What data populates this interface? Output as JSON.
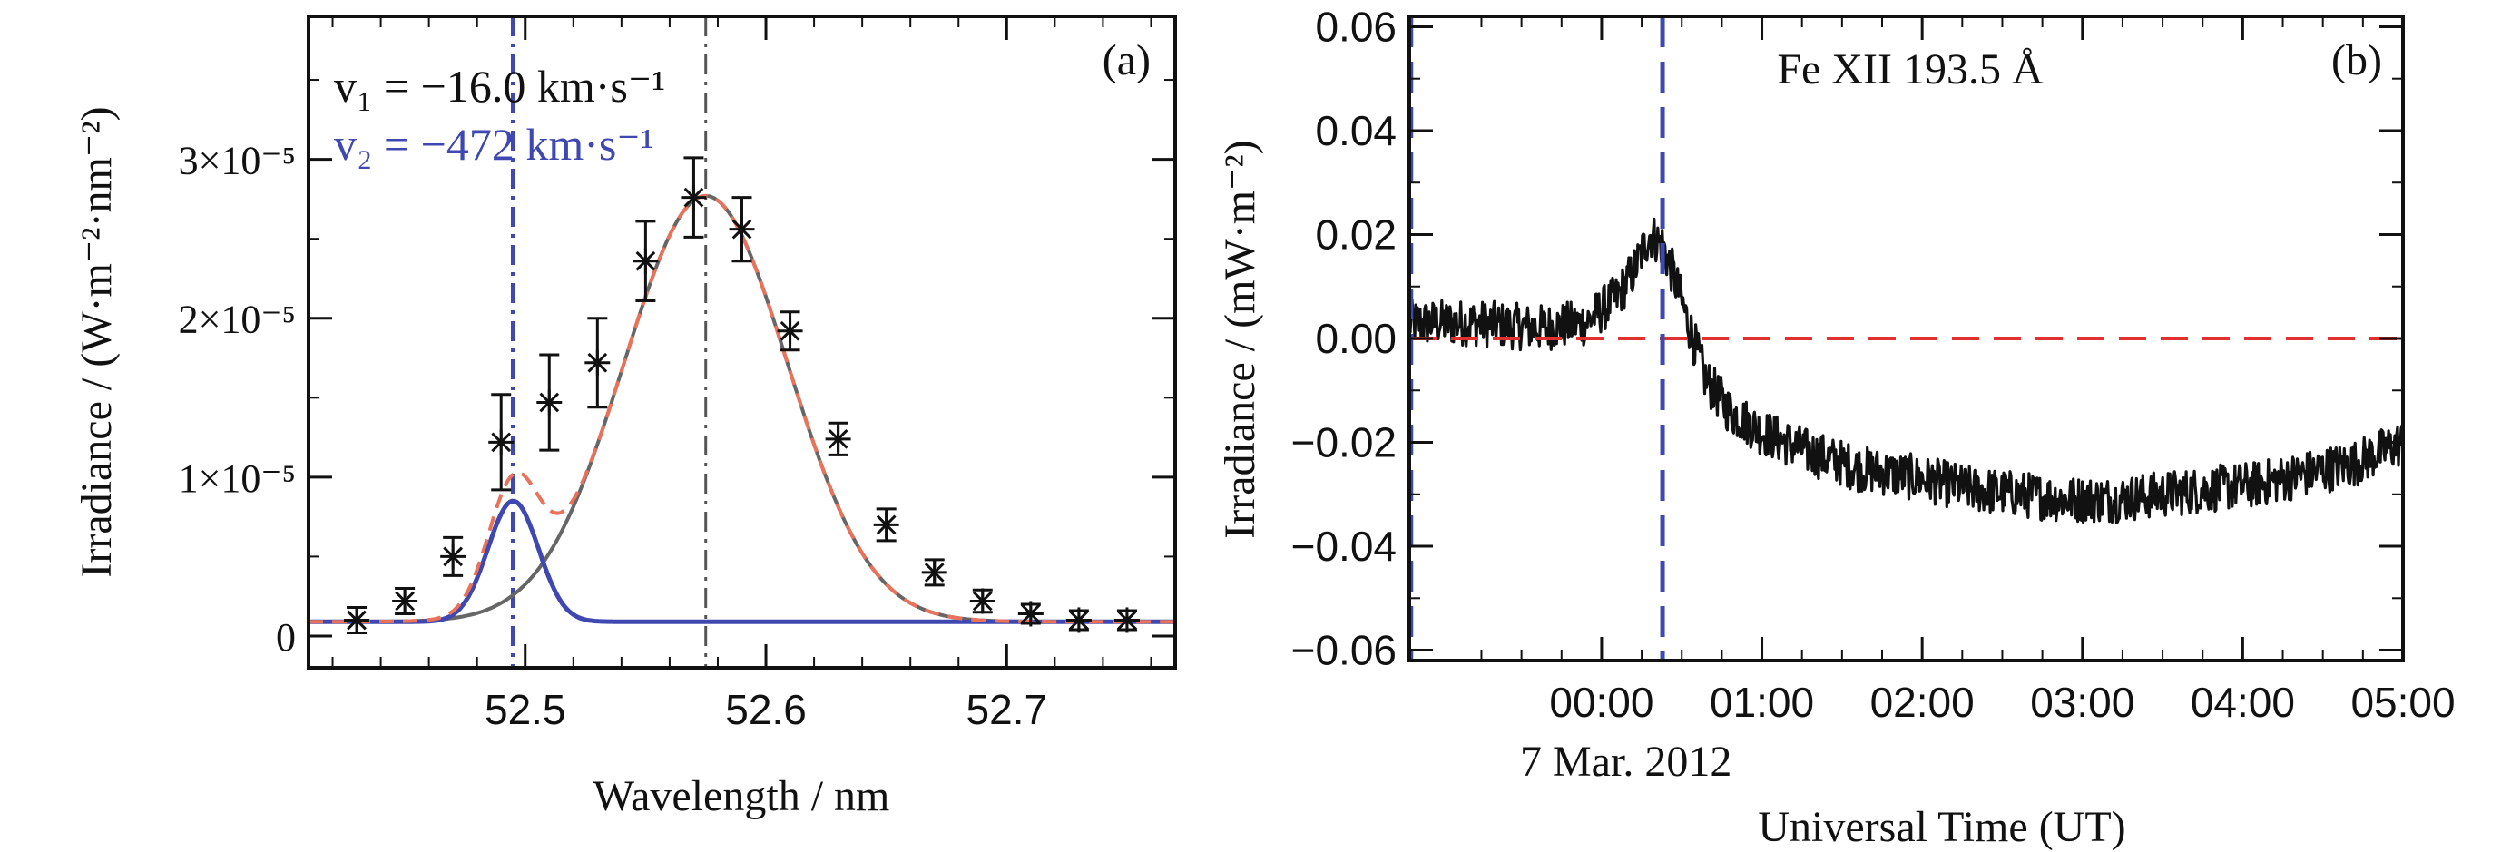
{
  "chart_data": [
    {
      "type": "scatter",
      "panel_label": "(a)",
      "xlabel": "Wavelength / nm",
      "ylabel": "Irradiance / (W·m⁻²·nm⁻²)",
      "xlim": [
        52.41,
        52.77
      ],
      "ylim": [
        -0.2,
        3.9
      ],
      "y_scale_note": "×10⁻⁵",
      "x_ticks": [
        52.5,
        52.6,
        52.7
      ],
      "x_tick_labels": [
        "52.5",
        "52.6",
        "52.7"
      ],
      "y_ticks": [
        0,
        1,
        2,
        3
      ],
      "y_tick_labels": [
        "0",
        "1×10⁻⁵",
        "2×10⁻⁵",
        "3×10⁻⁵"
      ],
      "annotations": [
        "v₁ = −16.0 km·s⁻¹",
        "v₂ = −472 km·s⁻¹"
      ],
      "points": {
        "x": [
          52.43,
          52.45,
          52.47,
          52.49,
          52.51,
          52.53,
          52.55,
          52.57,
          52.59,
          52.61,
          52.63,
          52.65,
          52.67,
          52.69,
          52.71,
          52.73,
          52.75
        ],
        "y": [
          0.1,
          0.22,
          0.5,
          1.22,
          1.47,
          1.72,
          2.36,
          2.76,
          2.56,
          1.92,
          1.24,
          0.7,
          0.4,
          0.22,
          0.14,
          0.1,
          0.1
        ],
        "err": [
          0.08,
          0.08,
          0.12,
          0.3,
          0.3,
          0.28,
          0.25,
          0.25,
          0.2,
          0.12,
          0.1,
          0.1,
          0.08,
          0.07,
          0.06,
          0.06,
          0.06
        ]
      },
      "fits": {
        "main": {
          "center": 52.575,
          "amplitude": 2.68,
          "sigma": 0.034,
          "baseline": 0.09,
          "color": "#666666"
        },
        "secondary": {
          "center": 52.495,
          "amplitude": 0.76,
          "sigma": 0.0105,
          "baseline": 0.09,
          "color": "#3f48b0"
        },
        "sum_color": "#e8735a"
      },
      "vlines": [
        {
          "x": 52.495,
          "color": "#3f48b0",
          "style": "dash-dot"
        },
        {
          "x": 52.575,
          "color": "#555555",
          "style": "dash-dot"
        }
      ]
    },
    {
      "type": "line",
      "panel_label": "(b)",
      "title": "Fe XII 193.5 Å",
      "xlabel": "Universal Time (UT)",
      "ylabel": "Irradiance / (mW·m⁻²)",
      "date_label": "7 Mar. 2012",
      "x_unit": "hours UT",
      "xlim": [
        -1.2,
        5.0
      ],
      "ylim": [
        -0.062,
        0.062
      ],
      "x_ticks": [
        0,
        1,
        2,
        3,
        4,
        5
      ],
      "x_tick_labels": [
        "00:00",
        "01:00",
        "02:00",
        "03:00",
        "04:00",
        "05:00"
      ],
      "y_ticks": [
        -0.06,
        -0.04,
        -0.02,
        0.0,
        0.02,
        0.04,
        0.06
      ],
      "y_tick_labels": [
        "−0.06",
        "−0.04",
        "−0.02",
        "0.00",
        "0.02",
        "0.04",
        "0.06"
      ],
      "series": [
        {
          "color": "#111111",
          "x": [
            -1.2,
            -0.8,
            -0.4,
            -0.1,
            0.1,
            0.2,
            0.3,
            0.38,
            0.45,
            0.55,
            0.65,
            0.8,
            1.0,
            1.3,
            1.6,
            2.0,
            2.3,
            2.6,
            2.9,
            3.2,
            3.5,
            3.8,
            4.1,
            4.4,
            4.7,
            5.0
          ],
          "y": [
            0.003,
            0.003,
            0.002,
            0.003,
            0.008,
            0.013,
            0.02,
            0.018,
            0.012,
            0.002,
            -0.008,
            -0.014,
            -0.018,
            -0.022,
            -0.025,
            -0.027,
            -0.029,
            -0.03,
            -0.031,
            -0.031,
            -0.03,
            -0.029,
            -0.028,
            -0.026,
            -0.024,
            -0.02
          ],
          "noise": 0.0045
        }
      ],
      "hline": {
        "y": 0.0,
        "color": "#e03030",
        "style": "dashed"
      },
      "vlines": [
        {
          "x": 0.38,
          "color": "#3f48b0",
          "style": "dashed"
        },
        {
          "x": -1.19,
          "color": "#3f48b0",
          "style": "dashed"
        }
      ]
    }
  ]
}
